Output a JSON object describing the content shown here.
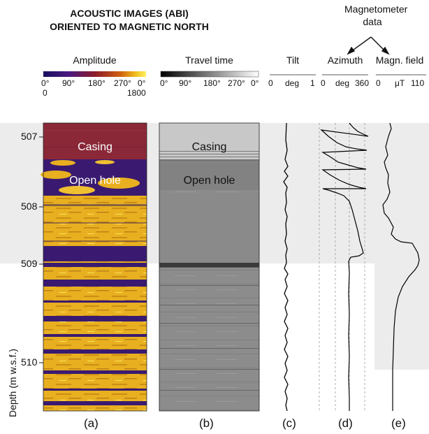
{
  "header": {
    "title_line1": "ACOUSTIC IMAGES (ABI)",
    "title_line2": "ORIENTED TO MAGNETIC NORTH",
    "magnetometer_line1": "Magnetometer",
    "magnetometer_line2": "data"
  },
  "columns": {
    "amplitude": {
      "label": "Amplitude",
      "ticks": [
        "0°",
        "90°",
        "180°",
        "270°",
        "0°"
      ],
      "scale_min": "0",
      "scale_max": "1800",
      "colorbar": [
        "#1a1060",
        "#4a1a80",
        "#8a1a2a",
        "#c05010",
        "#f0c020",
        "#fff060"
      ]
    },
    "travel_time": {
      "label": "Travel time",
      "ticks": [
        "0°",
        "90°",
        "180°",
        "270°",
        "0°"
      ],
      "colorbar": [
        "#000000",
        "#ffffff"
      ]
    },
    "tilt": {
      "label": "Tilt",
      "ticks": [
        "0",
        "deg",
        "1"
      ]
    },
    "azimuth": {
      "label": "Azimuth",
      "ticks": [
        "0",
        "deg",
        "360"
      ]
    },
    "magn_field": {
      "label": "Magn. field",
      "ticks": [
        "0",
        "μT",
        "110"
      ]
    }
  },
  "image_labels": {
    "a_casing": "Casing",
    "a_open_hole": "Open hole",
    "b_casing": "Casing",
    "b_open_hole": "Open hole"
  },
  "depth_axis": {
    "label": "Depth (m w.s.f.)",
    "ticks": [
      "507",
      "508",
      "509",
      "510"
    ]
  },
  "panel_letters": [
    "(a)",
    "(b)",
    "(c)",
    "(d)",
    "(e)"
  ],
  "colors": {
    "amplitude_casing": "#8a2838",
    "amplitude_yellow": "#e8b020",
    "amplitude_blue": "#2a1a70",
    "travel_gray": "#8a8a8a",
    "casing_zone": "#ececec"
  }
}
